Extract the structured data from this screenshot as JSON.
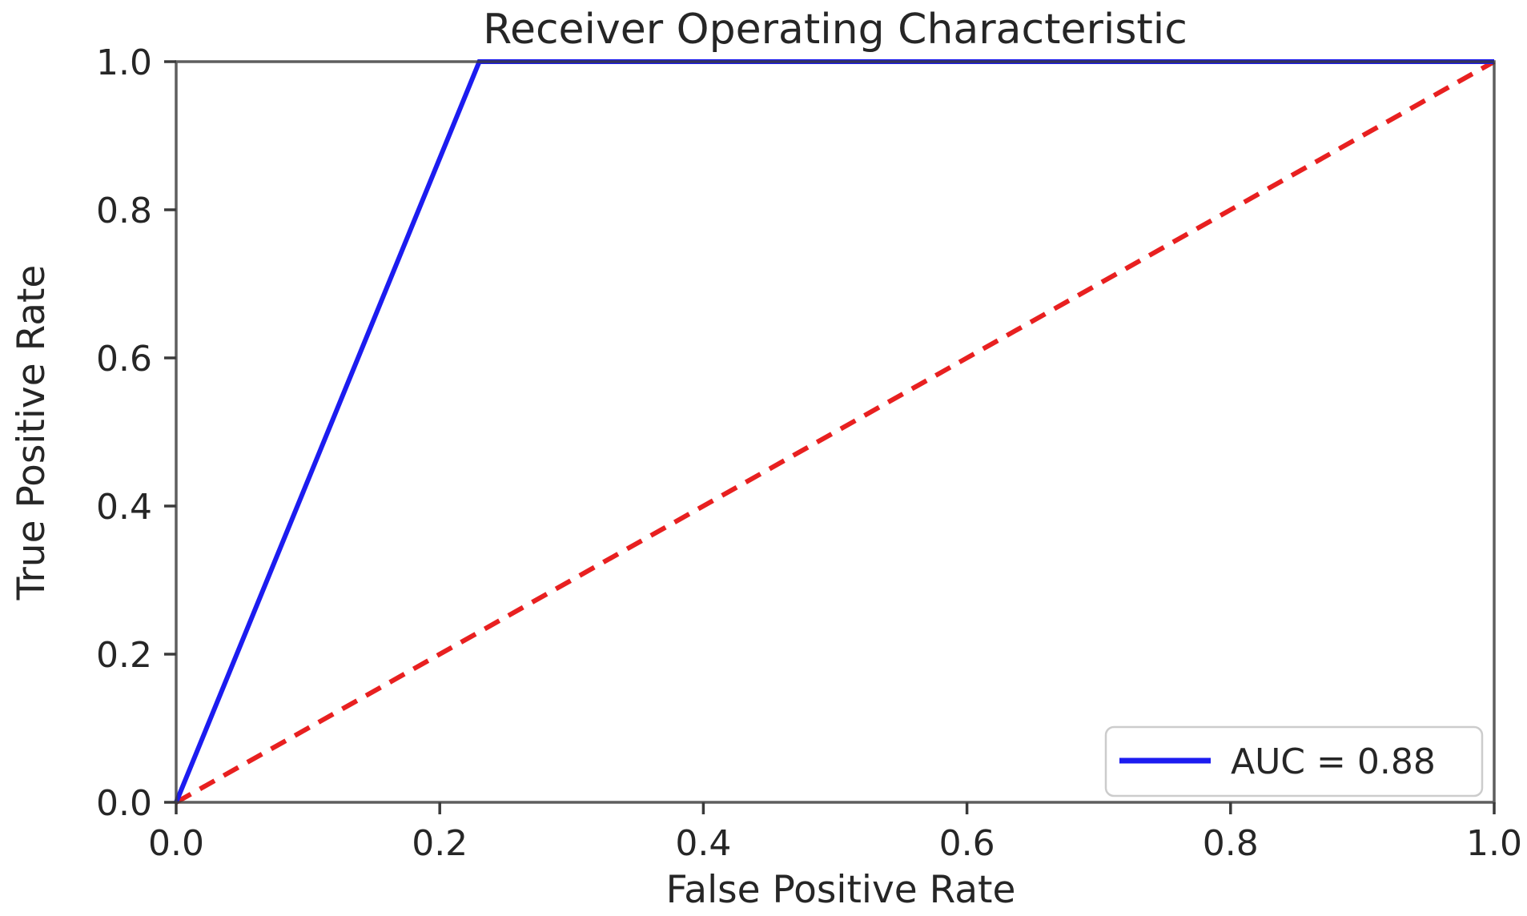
{
  "chart_data": {
    "type": "line",
    "title": "Receiver Operating Characteristic",
    "xlabel": "False Positive Rate",
    "ylabel": "True Positive Rate",
    "xlim": [
      0.0,
      1.0
    ],
    "ylim": [
      0.0,
      1.0
    ],
    "xticks": [
      0.0,
      0.2,
      0.4,
      0.6,
      0.8,
      1.0
    ],
    "xtick_labels": [
      "0.0",
      "0.2",
      "0.4",
      "0.6",
      "0.8",
      "1.0"
    ],
    "yticks": [
      0.0,
      0.2,
      0.4,
      0.6,
      0.8,
      1.0
    ],
    "ytick_labels": [
      "0.0",
      "0.2",
      "0.4",
      "0.6",
      "0.8",
      "1.0"
    ],
    "grid": false,
    "series": [
      {
        "name": "roc-curve",
        "color": "#1c1cf0",
        "line_style": "solid",
        "line_width": 6,
        "x": [
          0.0,
          0.23,
          1.0
        ],
        "y": [
          0.0,
          1.0,
          1.0
        ]
      },
      {
        "name": "chance-diagonal",
        "color": "#e82020",
        "line_style": "dashed",
        "line_width": 6,
        "x": [
          0.0,
          1.0
        ],
        "y": [
          0.0,
          1.0
        ]
      }
    ],
    "legend": {
      "position": "lower right",
      "entries": [
        {
          "label": "AUC = 0.88",
          "color": "#1c1cf0"
        }
      ]
    },
    "auc": 0.88,
    "axis_color": "#3a3a3a",
    "text_color": "#262626",
    "legend_border_color": "#cccccc"
  }
}
